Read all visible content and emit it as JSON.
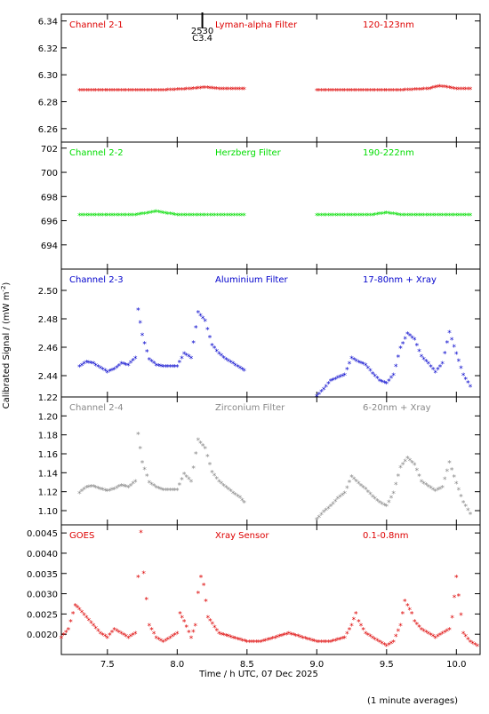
{
  "chart_data": {
    "type": "scatter",
    "x_range": [
      7.17,
      10.17
    ],
    "x_ticks": [
      7.5,
      8.0,
      8.5,
      9.0,
      9.5,
      10.0
    ],
    "x_tick_labels": [
      "7.5",
      "8.0",
      "8.5",
      "9.0",
      "9.5",
      "10.0"
    ],
    "xlabel": "Time / h UTC, 07 Dec 2025",
    "ylabel": "Calibrated Signal / (mW m",
    "ylabel_sup": "-2",
    "ylabel_close": ")",
    "footnote": "(1 minute averages)",
    "marker": {
      "x": 8.18,
      "label1": "2530",
      "label2": "C3.4"
    },
    "panels": [
      {
        "channel": "Channel 2-1",
        "filter": "Lyman-alpha Filter",
        "band": "120-123nm",
        "color": "#dd0000",
        "ylim": [
          6.25,
          6.345
        ],
        "yticks": [
          6.26,
          6.28,
          6.3,
          6.32,
          6.34
        ],
        "ytick_labels": [
          "6.26",
          "6.28",
          "6.30",
          "6.32",
          "6.34"
        ],
        "series": [
          {
            "x": [
              7.3,
              7.5,
              7.7,
              7.9,
              8.1,
              8.2,
              8.3,
              8.48
            ],
            "y": [
              6.288,
              6.288,
              6.288,
              6.288,
              6.289,
              6.29,
              6.289,
              6.289
            ]
          },
          {
            "x": [
              9.0,
              9.2,
              9.4,
              9.6,
              9.8,
              9.88,
              10.0,
              10.1
            ],
            "y": [
              6.288,
              6.288,
              6.288,
              6.288,
              6.289,
              6.291,
              6.289,
              6.289
            ]
          }
        ]
      },
      {
        "channel": "Channel 2-2",
        "filter": "Herzberg Filter",
        "band": "190-222nm",
        "color": "#00dd00",
        "ylim": [
          692,
          702.5
        ],
        "yticks": [
          694,
          696,
          698,
          700,
          702
        ],
        "ytick_labels": [
          "694",
          "696",
          "698",
          "700",
          "702"
        ],
        "series": [
          {
            "x": [
              7.3,
              7.5,
              7.7,
              7.85,
              8.0,
              8.2,
              8.48
            ],
            "y": [
              696.4,
              696.4,
              696.4,
              696.7,
              696.4,
              696.4,
              696.4
            ]
          },
          {
            "x": [
              9.0,
              9.2,
              9.4,
              9.5,
              9.6,
              9.8,
              10.1
            ],
            "y": [
              696.4,
              696.4,
              696.4,
              696.6,
              696.4,
              696.4,
              696.4
            ]
          }
        ]
      },
      {
        "channel": "Channel 2-3",
        "filter": "Aluminium Filter",
        "band": "17-80nm + Xray",
        "color": "#0000cc",
        "ylim": [
          2.425,
          2.515
        ],
        "yticks": [
          2.44,
          2.46,
          2.48,
          2.5
        ],
        "ytick_labels": [
          "2.44",
          "2.46",
          "2.48",
          "2.50"
        ],
        "series": [
          {
            "x": [
              7.3,
              7.35,
              7.4,
              7.45,
              7.5,
              7.55,
              7.6,
              7.65,
              7.7,
              7.72,
              7.75,
              7.8,
              7.85,
              7.9,
              8.0,
              8.05,
              8.1,
              8.15,
              8.2,
              8.25,
              8.3,
              8.35,
              8.4,
              8.45,
              8.48
            ],
            "y": [
              2.446,
              2.449,
              2.448,
              2.445,
              2.442,
              2.444,
              2.448,
              2.447,
              2.452,
              2.486,
              2.468,
              2.451,
              2.447,
              2.446,
              2.446,
              2.455,
              2.452,
              2.484,
              2.478,
              2.461,
              2.455,
              2.451,
              2.448,
              2.445,
              2.443
            ]
          },
          {
            "x": [
              9.0,
              9.05,
              9.1,
              9.15,
              9.2,
              9.25,
              9.3,
              9.35,
              9.4,
              9.45,
              9.5,
              9.55,
              9.6,
              9.65,
              9.7,
              9.75,
              9.8,
              9.85,
              9.9,
              9.95,
              10.0,
              10.05,
              10.1
            ],
            "y": [
              2.425,
              2.43,
              2.436,
              2.438,
              2.44,
              2.452,
              2.449,
              2.447,
              2.441,
              2.436,
              2.434,
              2.44,
              2.459,
              2.469,
              2.465,
              2.453,
              2.448,
              2.442,
              2.448,
              2.47,
              2.455,
              2.44,
              2.432
            ]
          }
        ]
      },
      {
        "channel": "Channel 2-4",
        "filter": "Zirconium Filter",
        "band": "6-20nm + Xray",
        "color": "#888888",
        "ylim": [
          1.085,
          1.22
        ],
        "yticks": [
          1.1,
          1.12,
          1.14,
          1.16,
          1.18,
          1.2,
          1.22
        ],
        "ytick_labels": [
          "1.10",
          "1.12",
          "1.14",
          "1.16",
          "1.18",
          "1.20",
          "1.22"
        ],
        "series": [
          {
            "x": [
              7.3,
              7.35,
              7.4,
              7.45,
              7.5,
              7.55,
              7.6,
              7.65,
              7.7,
              7.72,
              7.75,
              7.8,
              7.85,
              7.9,
              8.0,
              8.05,
              8.1,
              8.15,
              8.2,
              8.25,
              8.3,
              8.35,
              8.4,
              8.45,
              8.48
            ],
            "y": [
              1.118,
              1.124,
              1.125,
              1.122,
              1.12,
              1.122,
              1.126,
              1.124,
              1.13,
              1.18,
              1.15,
              1.129,
              1.124,
              1.121,
              1.121,
              1.138,
              1.13,
              1.174,
              1.165,
              1.14,
              1.13,
              1.124,
              1.118,
              1.113,
              1.108
            ]
          },
          {
            "x": [
              9.0,
              9.05,
              9.1,
              9.15,
              9.2,
              9.25,
              9.3,
              9.35,
              9.4,
              9.45,
              9.5,
              9.55,
              9.6,
              9.65,
              9.7,
              9.75,
              9.8,
              9.85,
              9.9,
              9.95,
              10.0,
              10.05,
              10.1
            ],
            "y": [
              1.09,
              1.098,
              1.104,
              1.112,
              1.118,
              1.135,
              1.128,
              1.122,
              1.114,
              1.108,
              1.104,
              1.118,
              1.145,
              1.155,
              1.148,
              1.13,
              1.125,
              1.12,
              1.124,
              1.15,
              1.128,
              1.108,
              1.096
            ]
          }
        ]
      },
      {
        "channel": "GOES",
        "filter": "Xray Sensor",
        "band": "0.1-0.8nm",
        "color": "#dd0000",
        "ylim": [
          0.0015,
          0.0047
        ],
        "yticks": [
          0.002,
          0.0025,
          0.003,
          0.0035,
          0.004,
          0.0045
        ],
        "ytick_labels": [
          "0.0020",
          "0.0025",
          "0.0030",
          "0.0035",
          "0.0040",
          "0.0045"
        ],
        "series": [
          {
            "x": [
              7.17,
              7.22,
              7.27,
              7.3,
              7.35,
              7.4,
              7.45,
              7.5,
              7.55,
              7.6,
              7.65,
              7.7,
              7.72,
              7.74,
              7.76,
              7.8,
              7.85,
              7.9,
              7.95,
              8.0,
              8.02,
              8.05,
              8.1,
              8.13,
              8.15,
              8.17,
              8.19,
              8.22,
              8.3,
              8.4,
              8.5,
              8.6,
              8.7,
              8.8,
              8.9,
              9.0,
              9.1,
              9.2,
              9.25,
              9.28,
              9.3,
              9.35,
              9.4,
              9.45,
              9.5,
              9.55,
              9.6,
              9.63,
              9.65,
              9.68,
              9.7,
              9.75,
              9.8,
              9.85,
              9.9,
              9.95,
              9.97,
              10.0,
              10.05,
              10.1,
              10.15
            ],
            "y": [
              0.0019,
              0.0021,
              0.0027,
              0.0026,
              0.0024,
              0.0022,
              0.002,
              0.0019,
              0.0021,
              0.002,
              0.0019,
              0.002,
              0.0034,
              0.0045,
              0.0035,
              0.0022,
              0.0019,
              0.0018,
              0.0019,
              0.002,
              0.0025,
              0.0023,
              0.0019,
              0.0022,
              0.003,
              0.0034,
              0.0032,
              0.0024,
              0.002,
              0.0019,
              0.0018,
              0.0018,
              0.0019,
              0.002,
              0.0019,
              0.0018,
              0.0018,
              0.0019,
              0.0022,
              0.0025,
              0.0023,
              0.002,
              0.0019,
              0.0018,
              0.0017,
              0.0018,
              0.0022,
              0.0028,
              0.0027,
              0.0025,
              0.0023,
              0.0021,
              0.002,
              0.0019,
              0.002,
              0.0021,
              0.0024,
              0.0034,
              0.002,
              0.0018,
              0.0017
            ]
          }
        ]
      }
    ]
  }
}
